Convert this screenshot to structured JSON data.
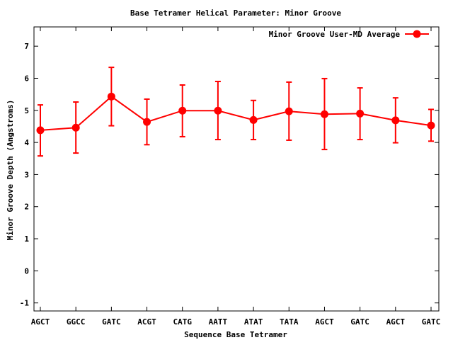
{
  "chart_data": {
    "type": "line",
    "title": "Base Tetramer Helical Parameter: Minor Groove",
    "xlabel": "Sequence Base Tetramer",
    "ylabel": "Minor Groove Depth (Angstroms)",
    "ylim": [
      -1.25,
      7.6
    ],
    "yticks": [
      -1,
      0,
      1,
      2,
      3,
      4,
      5,
      6,
      7
    ],
    "categories": [
      "AGCT",
      "GGCC",
      "GATC",
      "ACGT",
      "CATG",
      "AATT",
      "ATAT",
      "TATA",
      "AGCT",
      "GATC",
      "AGCT",
      "GATC"
    ],
    "series": [
      {
        "name": "Minor Groove User-MD Average",
        "color": "#ff0000",
        "values": [
          4.38,
          4.46,
          5.43,
          4.64,
          4.99,
          4.99,
          4.7,
          4.97,
          4.88,
          4.9,
          4.69,
          4.53
        ],
        "err_low": [
          3.58,
          3.67,
          4.52,
          3.93,
          4.18,
          4.09,
          4.09,
          4.07,
          3.78,
          4.09,
          3.99,
          4.04
        ],
        "err_high": [
          5.17,
          5.26,
          6.34,
          5.35,
          5.79,
          5.9,
          5.31,
          5.88,
          5.99,
          5.7,
          5.39,
          5.03
        ]
      }
    ],
    "grid": false,
    "legend_position": "top-right"
  }
}
